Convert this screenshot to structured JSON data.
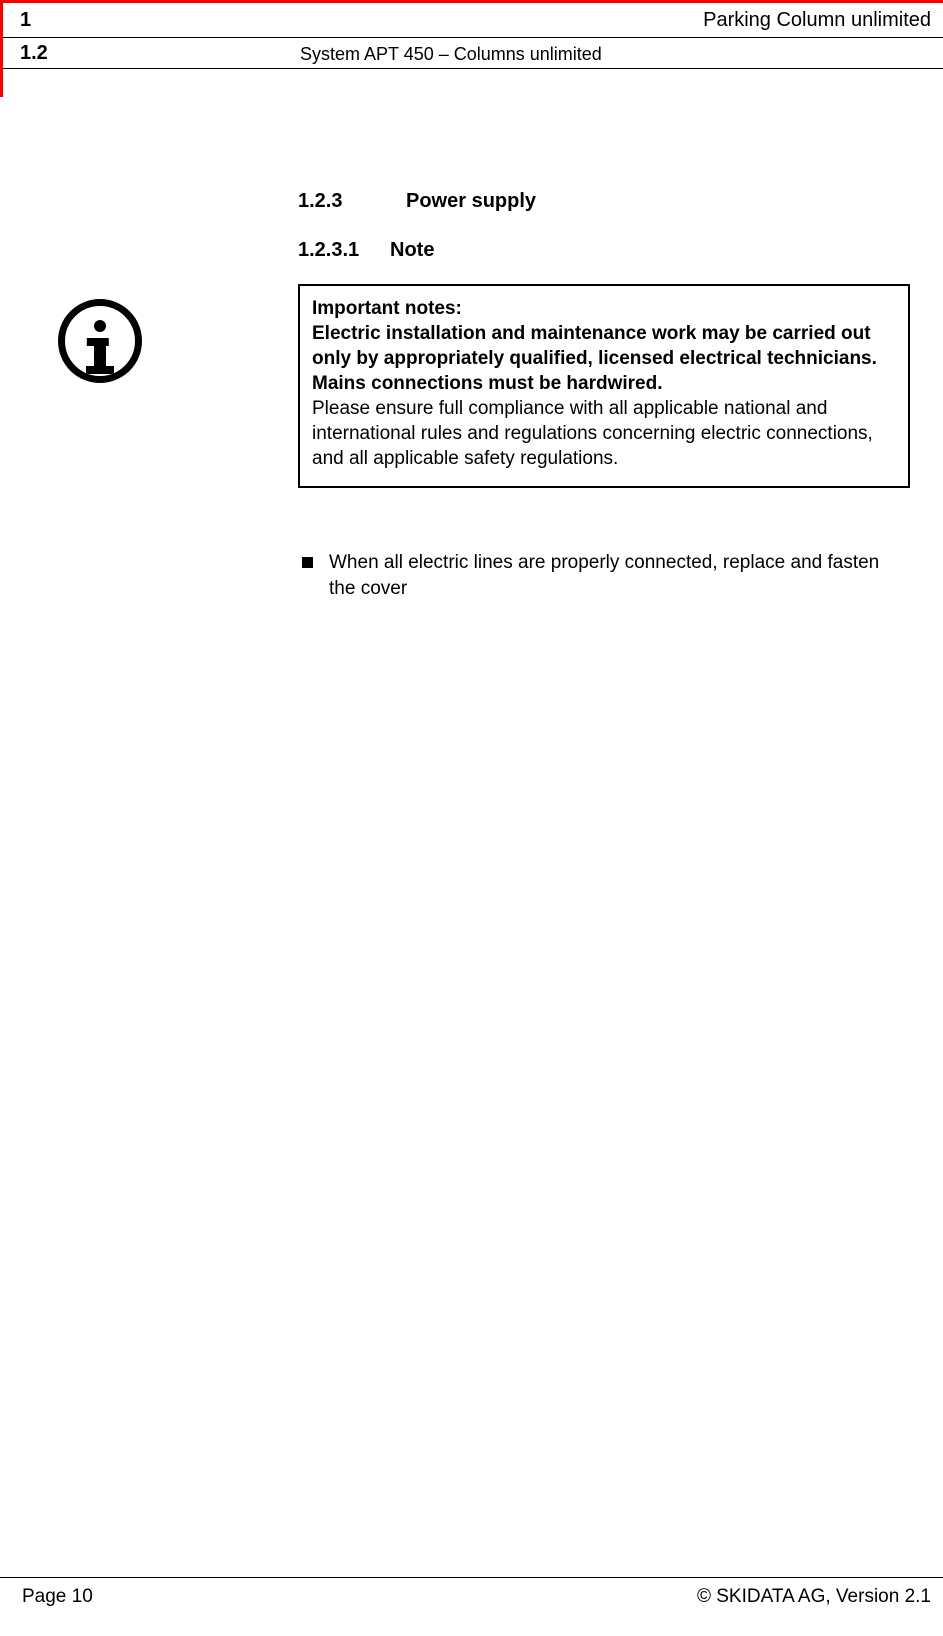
{
  "colors": {
    "accent": "#ff0000",
    "text": "#000000",
    "bg": "#ffffff"
  },
  "header": {
    "chapter_no": "1",
    "chapter_title": "Parking Column unlimited",
    "section_no": "1.2",
    "section_title": "System APT 450 – Columns unlimited"
  },
  "headings": {
    "h3_no": "1.2.3",
    "h3_title": "Power supply",
    "h4_no": "1.2.3.1",
    "h4_title": "Note"
  },
  "note": {
    "lead": "Important notes:",
    "bold1": "Electric installation and maintenance work may be carried out only by appropriately qualified, licensed electrical technicians.",
    "bold2": "Mains connections must be hardwired.",
    "body": "Please ensure full compliance with all applicable national and international rules and regulations concerning electric connec­tions, and all applicable safety regulations."
  },
  "bullets": [
    "When all electric lines are properly connected, replace and fasten the cover"
  ],
  "footer": {
    "page": "Page 10",
    "copyright": "© SKIDATA AG, Version 2.1"
  }
}
